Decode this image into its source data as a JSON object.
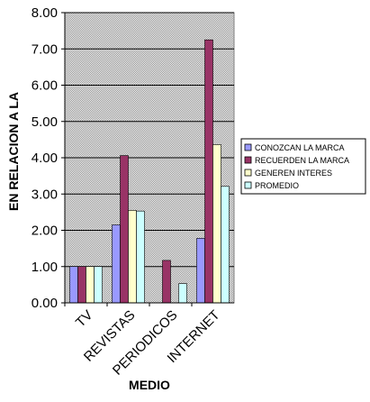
{
  "chart_data": {
    "type": "bar",
    "categories": [
      "TV",
      "REVISTAS",
      "PERIODICOS",
      "INTERNET"
    ],
    "series": [
      {
        "name": "CONOZCAN LA MARCA",
        "color": "#9999ff",
        "values": [
          1.0,
          2.15,
          null,
          1.78
        ]
      },
      {
        "name": "RECUERDEN LA MARCA",
        "color": "#993366",
        "values": [
          1.0,
          4.06,
          1.17,
          7.25
        ]
      },
      {
        "name": "GENEREN INTERES",
        "color": "#ffffcc",
        "values": [
          1.0,
          2.55,
          null,
          4.36
        ]
      },
      {
        "name": "PROMEDIO",
        "color": "#ccffff",
        "values": [
          1.0,
          2.53,
          0.53,
          3.21
        ]
      }
    ],
    "ylim": [
      0,
      8
    ],
    "yticks": [
      "0.00",
      "1.00",
      "2.00",
      "3.00",
      "4.00",
      "5.00",
      "6.00",
      "7.00",
      "8.00"
    ],
    "xlabel": "MEDIO",
    "ylabel": "EN RELACION A LA",
    "grid": true,
    "legend_position": "right",
    "plot_background": "#c0c0c0"
  }
}
